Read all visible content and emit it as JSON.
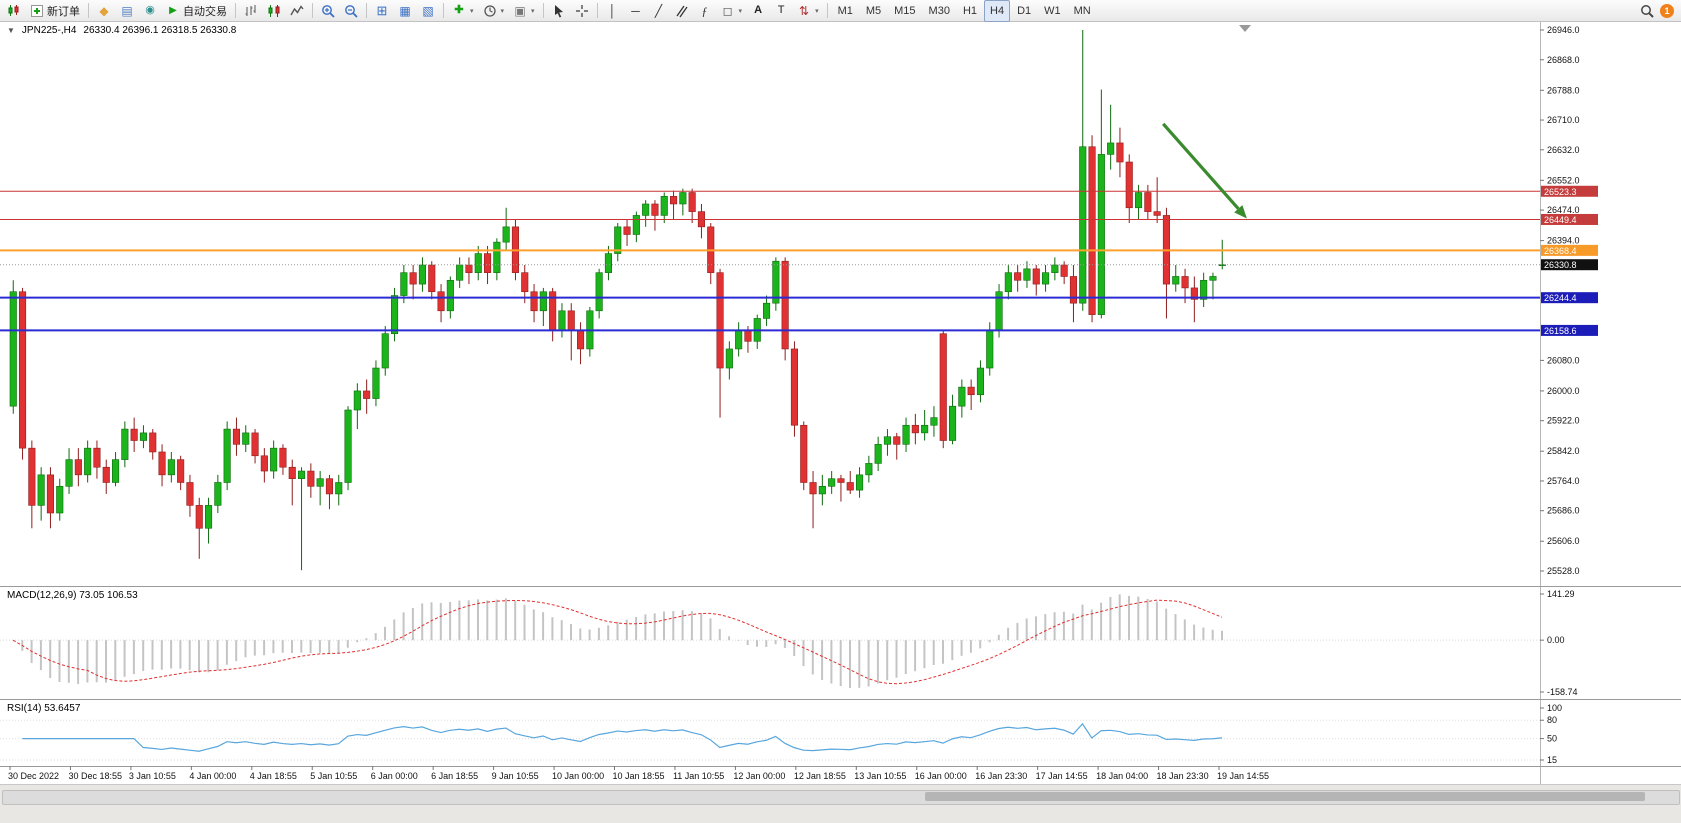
{
  "toolbar": {
    "groups": [
      {
        "items": [
          {
            "name": "new-chart",
            "icon": "mini-candles"
          },
          {
            "name": "new-order",
            "icon": "order-plus",
            "label": "新订单"
          }
        ]
      },
      {
        "items": [
          {
            "name": "market-watch",
            "icon": "diamond"
          },
          {
            "name": "data-window",
            "icon": "doc"
          },
          {
            "name": "community",
            "icon": "globe"
          },
          {
            "name": "auto-trading",
            "icon": "play",
            "label": "自动交易"
          }
        ]
      },
      {
        "items": [
          {
            "name": "bar-chart-mode",
            "icon": "bars-chart"
          },
          {
            "name": "candlestick-mode",
            "icon": "candles-chart"
          },
          {
            "name": "line-chart-mode",
            "icon": "line-chart"
          }
        ]
      },
      {
        "items": [
          {
            "name": "zoom-in",
            "icon": "zoom-in"
          },
          {
            "name": "zoom-out",
            "icon": "zoom-out"
          }
        ]
      },
      {
        "items": [
          {
            "name": "tile-windows",
            "icon": "grid"
          },
          {
            "name": "auto-arrange",
            "icon": "tile"
          },
          {
            "name": "track-chart",
            "icon": "tile2"
          }
        ]
      },
      {
        "items": [
          {
            "name": "indicators",
            "icon": "indicator-add",
            "caret": true
          },
          {
            "name": "periods-menu",
            "icon": "clock",
            "caret": true
          },
          {
            "name": "templates",
            "icon": "template",
            "caret": true
          }
        ]
      },
      {
        "items": [
          {
            "name": "cursor-tool",
            "icon": "cursor"
          },
          {
            "name": "crosshair-tool",
            "icon": "crosshair"
          }
        ]
      },
      {
        "items": [
          {
            "name": "vertical-line-tool",
            "icon": "vline"
          },
          {
            "name": "horizontal-line-tool",
            "icon": "hline"
          },
          {
            "name": "trendline-tool",
            "icon": "trendline"
          },
          {
            "name": "channel-tool",
            "icon": "channel"
          },
          {
            "name": "fibonacci-tool",
            "icon": "fibo"
          },
          {
            "name": "shapes-tool",
            "icon": "shapes",
            "caret": true
          },
          {
            "name": "text-tool",
            "icon": "text-a"
          },
          {
            "name": "label-tool",
            "icon": "text-t"
          },
          {
            "name": "arrows-tool",
            "icon": "arrows",
            "caret": true
          }
        ]
      }
    ],
    "timeframes": [
      "M1",
      "M5",
      "M15",
      "M30",
      "H1",
      "H4",
      "D1",
      "W1",
      "MN"
    ],
    "active_timeframe": "H4",
    "notification_count": "1"
  },
  "chart": {
    "symbol_period": "JPN225-,H4",
    "ohlc_text": "26330.4 26396.1 26318.5 26330.8",
    "open": "26330.4",
    "high": "26396.1",
    "low": "26318.5",
    "close": "26330.8"
  },
  "chart_data": {
    "type": "candlestick",
    "symbol": "JPN225-",
    "timeframe": "H4",
    "colors": {
      "up": "#1cb41c",
      "down": "#e03232",
      "arrow": "#3a8a2e",
      "macd_hist": "#c4c4c4",
      "macd_signal": "#e03030",
      "rsi": "#58a6dd"
    },
    "price_axis": {
      "min": 25528.0,
      "max": 26946.0,
      "ticks": [
        26946.0,
        26868.0,
        26788.0,
        26710.0,
        26632.0,
        26552.0,
        26474.0,
        26394.0,
        26080.0,
        26000.0,
        25922.0,
        25842.0,
        25764.0,
        25686.0,
        25606.0,
        25528.0
      ]
    },
    "hlines": [
      {
        "name": "resistance-line-1",
        "price": 26523.3,
        "color": "#cc3333",
        "width": 1,
        "label_bg": "#c43c3c"
      },
      {
        "name": "resistance-line-2",
        "price": 26449.4,
        "color": "#cc3333",
        "width": 1,
        "label_bg": "#c43c3c"
      },
      {
        "name": "pivot-line",
        "price": 26368.4,
        "color": "#ffa02e",
        "width": 2,
        "label_bg": "#f79a28"
      },
      {
        "name": "current-price-line",
        "price": 26330.8,
        "color": "#9a9a9a",
        "width": 1,
        "style": "dotted",
        "label_bg": "#111111"
      },
      {
        "name": "support-line-1",
        "price": 26244.4,
        "color": "#2b2bd4",
        "width": 2,
        "label_bg": "#1c1cb8"
      },
      {
        "name": "support-line-2",
        "price": 26158.6,
        "color": "#2b2bd4",
        "width": 2,
        "label_bg": "#1c1cb8"
      }
    ],
    "arrow": {
      "from": {
        "index": 124,
        "price": 26700
      },
      "to": {
        "index": 133,
        "price": 26452
      },
      "color": "#3a8a2e"
    },
    "x_labels": [
      "30 Dec 2022",
      "30 Dec 18:55",
      "3 Jan 10:55",
      "4 Jan 00:00",
      "4 Jan 18:55",
      "5 Jan 10:55",
      "6 Jan 00:00",
      "6 Jan 18:55",
      "9 Jan 10:55",
      "10 Jan 00:00",
      "10 Jan 18:55",
      "11 Jan 10:55",
      "12 Jan 00:00",
      "12 Jan 18:55",
      "13 Jan 10:55",
      "16 Jan 00:00",
      "16 Jan 23:30",
      "17 Jan 14:55",
      "18 Jan 04:00",
      "18 Jan 23:30",
      "19 Jan 14:55"
    ],
    "candles": [
      [
        25960,
        26290,
        25940,
        26260
      ],
      [
        26260,
        26270,
        25820,
        25850
      ],
      [
        25850,
        25870,
        25640,
        25700
      ],
      [
        25700,
        25800,
        25660,
        25780
      ],
      [
        25780,
        25800,
        25640,
        25680
      ],
      [
        25680,
        25770,
        25660,
        25750
      ],
      [
        25750,
        25850,
        25730,
        25820
      ],
      [
        25820,
        25850,
        25750,
        25780
      ],
      [
        25780,
        25870,
        25760,
        25850
      ],
      [
        25850,
        25870,
        25770,
        25800
      ],
      [
        25800,
        25820,
        25730,
        25760
      ],
      [
        25760,
        25840,
        25750,
        25820
      ],
      [
        25820,
        25920,
        25800,
        25900
      ],
      [
        25900,
        25930,
        25840,
        25870
      ],
      [
        25870,
        25910,
        25850,
        25890
      ],
      [
        25890,
        25900,
        25820,
        25840
      ],
      [
        25840,
        25860,
        25750,
        25780
      ],
      [
        25780,
        25840,
        25760,
        25820
      ],
      [
        25820,
        25830,
        25740,
        25760
      ],
      [
        25760,
        25780,
        25670,
        25700
      ],
      [
        25700,
        25720,
        25560,
        25640
      ],
      [
        25640,
        25720,
        25600,
        25700
      ],
      [
        25700,
        25780,
        25680,
        25760
      ],
      [
        25760,
        25920,
        25740,
        25900
      ],
      [
        25900,
        25930,
        25830,
        25860
      ],
      [
        25860,
        25910,
        25840,
        25890
      ],
      [
        25890,
        25900,
        25810,
        25830
      ],
      [
        25830,
        25850,
        25760,
        25790
      ],
      [
        25790,
        25870,
        25770,
        25850
      ],
      [
        25850,
        25860,
        25780,
        25800
      ],
      [
        25800,
        25820,
        25700,
        25770
      ],
      [
        25770,
        25800,
        25530,
        25790
      ],
      [
        25790,
        25810,
        25720,
        25750
      ],
      [
        25750,
        25790,
        25700,
        25770
      ],
      [
        25770,
        25780,
        25690,
        25730
      ],
      [
        25730,
        25780,
        25700,
        25760
      ],
      [
        25760,
        25960,
        25740,
        25950
      ],
      [
        25950,
        26020,
        25900,
        26000
      ],
      [
        26000,
        26030,
        25940,
        25980
      ],
      [
        25980,
        26080,
        25960,
        26060
      ],
      [
        26060,
        26170,
        26040,
        26150
      ],
      [
        26150,
        26270,
        26130,
        26250
      ],
      [
        26250,
        26330,
        26230,
        26310
      ],
      [
        26310,
        26330,
        26240,
        26280
      ],
      [
        26280,
        26350,
        26260,
        26330
      ],
      [
        26330,
        26340,
        26240,
        26260
      ],
      [
        26260,
        26280,
        26180,
        26210
      ],
      [
        26210,
        26300,
        26190,
        26290
      ],
      [
        26290,
        26350,
        26270,
        26330
      ],
      [
        26330,
        26350,
        26280,
        26310
      ],
      [
        26310,
        26380,
        26290,
        26360
      ],
      [
        26360,
        26380,
        26280,
        26310
      ],
      [
        26310,
        26400,
        26290,
        26390
      ],
      [
        26390,
        26480,
        26370,
        26430
      ],
      [
        26430,
        26450,
        26290,
        26310
      ],
      [
        26310,
        26330,
        26230,
        26260
      ],
      [
        26260,
        26280,
        26180,
        26210
      ],
      [
        26210,
        26270,
        26170,
        26260
      ],
      [
        26260,
        26270,
        26130,
        26160
      ],
      [
        26160,
        26230,
        26140,
        26210
      ],
      [
        26210,
        26230,
        26080,
        26160
      ],
      [
        26160,
        26180,
        26070,
        26110
      ],
      [
        26110,
        26220,
        26090,
        26210
      ],
      [
        26210,
        26320,
        26190,
        26310
      ],
      [
        26310,
        26380,
        26290,
        26360
      ],
      [
        26360,
        26440,
        26340,
        26430
      ],
      [
        26430,
        26450,
        26380,
        26410
      ],
      [
        26410,
        26470,
        26390,
        26460
      ],
      [
        26460,
        26500,
        26430,
        26490
      ],
      [
        26490,
        26500,
        26420,
        26460
      ],
      [
        26460,
        26520,
        26440,
        26510
      ],
      [
        26510,
        26525,
        26450,
        26490
      ],
      [
        26490,
        26530,
        26460,
        26520
      ],
      [
        26520,
        26530,
        26440,
        26470
      ],
      [
        26470,
        26490,
        26400,
        26430
      ],
      [
        26430,
        26440,
        26280,
        26310
      ],
      [
        26310,
        26320,
        25930,
        26060
      ],
      [
        26060,
        26130,
        26030,
        26110
      ],
      [
        26110,
        26180,
        26090,
        26160
      ],
      [
        26160,
        26170,
        26100,
        26130
      ],
      [
        26130,
        26200,
        26110,
        26190
      ],
      [
        26190,
        26250,
        26170,
        26230
      ],
      [
        26230,
        26350,
        26210,
        26340
      ],
      [
        26340,
        26350,
        26080,
        26110
      ],
      [
        26110,
        26130,
        25880,
        25910
      ],
      [
        25910,
        25920,
        25740,
        25760
      ],
      [
        25760,
        25790,
        25640,
        25730
      ],
      [
        25730,
        25780,
        25700,
        25750
      ],
      [
        25750,
        25790,
        25730,
        25770
      ],
      [
        25770,
        25780,
        25710,
        25760
      ],
      [
        25760,
        25790,
        25730,
        25740
      ],
      [
        25740,
        25800,
        25720,
        25780
      ],
      [
        25780,
        25830,
        25760,
        25810
      ],
      [
        25810,
        25880,
        25790,
        25860
      ],
      [
        25860,
        25900,
        25830,
        25880
      ],
      [
        25880,
        25890,
        25820,
        25860
      ],
      [
        25860,
        25930,
        25840,
        25910
      ],
      [
        25910,
        25940,
        25860,
        25890
      ],
      [
        25890,
        25950,
        25870,
        25910
      ],
      [
        25910,
        25960,
        25880,
        25930
      ],
      [
        26150,
        26160,
        25850,
        25870
      ],
      [
        25870,
        25990,
        25860,
        25960
      ],
      [
        25960,
        26030,
        25930,
        26010
      ],
      [
        26010,
        26030,
        25950,
        25990
      ],
      [
        25990,
        26080,
        25970,
        26060
      ],
      [
        26060,
        26180,
        26040,
        26160
      ],
      [
        26160,
        26280,
        26140,
        26260
      ],
      [
        26260,
        26330,
        26240,
        26310
      ],
      [
        26310,
        26330,
        26260,
        26290
      ],
      [
        26290,
        26340,
        26270,
        26320
      ],
      [
        26320,
        26330,
        26250,
        26280
      ],
      [
        26280,
        26330,
        26260,
        26310
      ],
      [
        26310,
        26350,
        26290,
        26330
      ],
      [
        26330,
        26340,
        26280,
        26300
      ],
      [
        26300,
        26330,
        26180,
        26230
      ],
      [
        26230,
        26946,
        26210,
        26640
      ],
      [
        26640,
        26670,
        26180,
        26200
      ],
      [
        26200,
        26790,
        26190,
        26620
      ],
      [
        26620,
        26750,
        26580,
        26650
      ],
      [
        26650,
        26690,
        26560,
        26600
      ],
      [
        26600,
        26620,
        26440,
        26480
      ],
      [
        26480,
        26540,
        26450,
        26520
      ],
      [
        26520,
        26540,
        26450,
        26470
      ],
      [
        26470,
        26560,
        26440,
        26460
      ],
      [
        26460,
        26480,
        26190,
        26280
      ],
      [
        26280,
        26330,
        26260,
        26300
      ],
      [
        26300,
        26320,
        26230,
        26270
      ],
      [
        26270,
        26300,
        26180,
        26240
      ],
      [
        26240,
        26310,
        26220,
        26290
      ],
      [
        26290,
        26310,
        26240,
        26300
      ],
      [
        26330.4,
        26396.1,
        26318.5,
        26330.8
      ]
    ],
    "macd": {
      "label": "MACD(12,26,9)",
      "values": "73.05 106.53",
      "params": [
        12,
        26,
        9
      ],
      "axis": [
        "141.29",
        "0.00",
        "-158.74"
      ]
    },
    "rsi": {
      "label": "RSI(14)",
      "value": "53.6457",
      "period": 14,
      "axis": [
        "100",
        "80",
        "50",
        "15"
      ]
    }
  }
}
